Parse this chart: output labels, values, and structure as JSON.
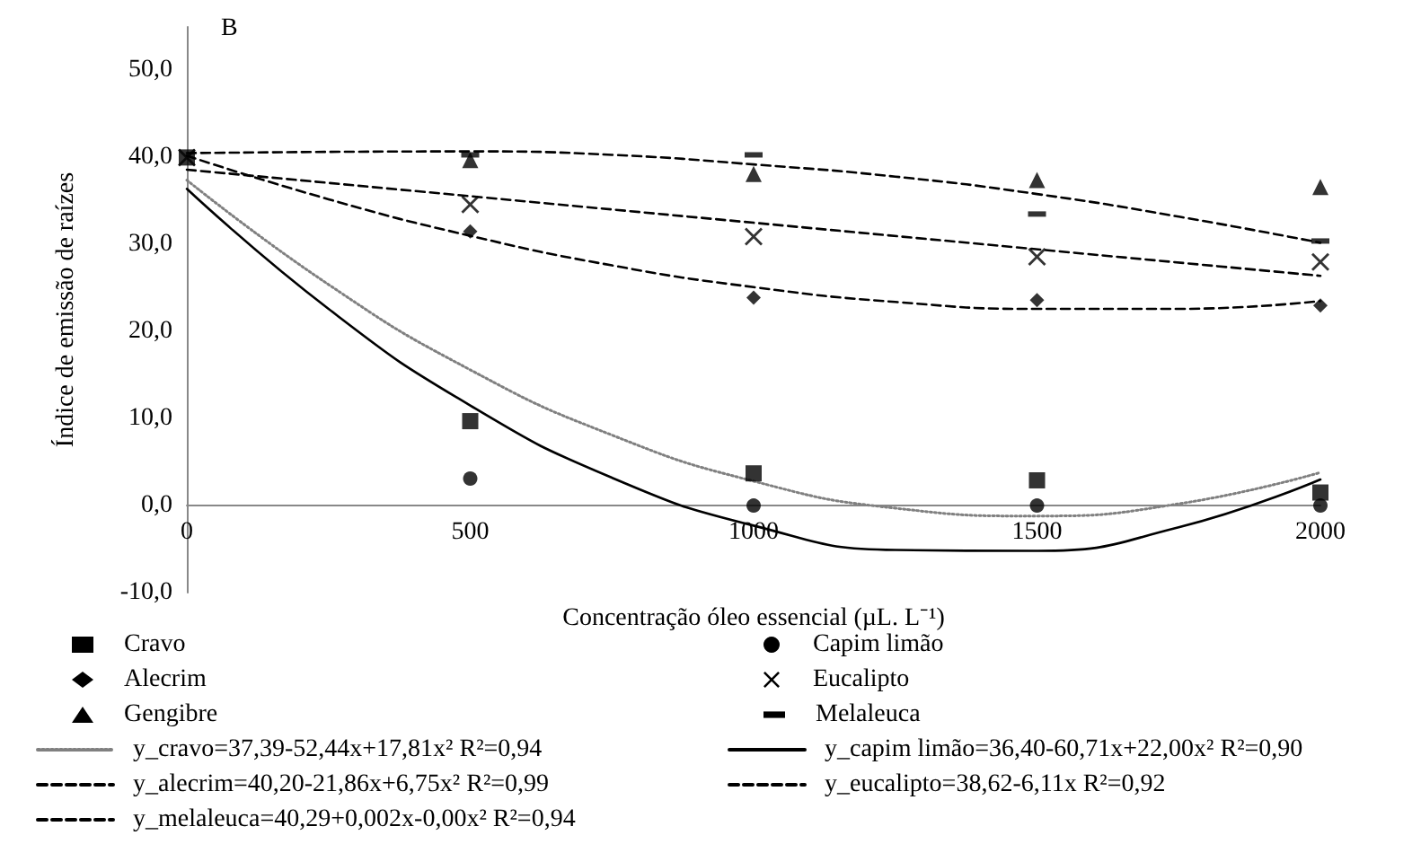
{
  "chart_data": {
    "type": "scatter",
    "title": "B",
    "xlabel": "Concentração óleo essencial (µL. L⁻¹)",
    "ylabel": "Índice de emissão de raízes",
    "x": [
      0,
      500,
      1000,
      1500,
      2000
    ],
    "xlim": [
      0,
      2000
    ],
    "xticks": [
      0,
      500,
      1000,
      1500,
      2000
    ],
    "ylim": [
      -10,
      55
    ],
    "yticks": [
      {
        "value": -10,
        "label": "-10,0"
      },
      {
        "value": 0,
        "label": "0,0"
      },
      {
        "value": 10,
        "label": "10,0"
      },
      {
        "value": 20,
        "label": "20,0"
      },
      {
        "value": 30,
        "label": "30,0"
      },
      {
        "value": 40,
        "label": "40,0"
      },
      {
        "value": 50,
        "label": "50,0"
      }
    ],
    "grid": false,
    "legend": "bottom",
    "series": [
      {
        "name": "Cravo",
        "marker": "square",
        "color": "#000000",
        "values": [
          40,
          9.7,
          3.7,
          2.9,
          1.5
        ]
      },
      {
        "name": "Capim limão",
        "marker": "circle",
        "color": "#000000",
        "values": [
          null,
          3.1,
          0,
          0,
          0
        ]
      },
      {
        "name": "Alecrim",
        "marker": "diamond",
        "color": "#000000",
        "values": [
          null,
          31.5,
          23.9,
          23.6,
          23.0
        ]
      },
      {
        "name": "Eucalipto",
        "marker": "cross",
        "color": "#000000",
        "values": [
          40,
          34.6,
          30.9,
          28.6,
          28.0
        ]
      },
      {
        "name": "Gengibre",
        "marker": "triangle",
        "color": "#000000",
        "values": [
          null,
          39.7,
          38.1,
          37.4,
          36.6
        ]
      },
      {
        "name": "Melaleuca",
        "color": "#000000",
        "values": [
          null,
          40.3,
          40.3,
          33.5,
          30.4
        ]
      },
      {
        "name": "y_cravo=37,39-52,44x+17,81x² R²=0,94",
        "type": "line",
        "marker": "none",
        "line_style": "dotted",
        "color": "#808080",
        "x": [
          0,
          250,
          500,
          750,
          1000,
          1250,
          1500,
          1750,
          2000
        ],
        "values": [
          37.4,
          25.4,
          15.6,
          8.1,
          2.8,
          -0.3,
          -1.2,
          0.2,
          3.8
        ]
      },
      {
        "name": "y_capim limão=36,40-60,71x+22,00x² R²=0,90",
        "type": "line",
        "marker": "none",
        "line_style": "solid",
        "color": "#000000",
        "x": [
          0,
          250,
          500,
          750,
          1000,
          1250,
          1500,
          1750,
          2000
        ],
        "values": [
          36.4,
          22.6,
          11.5,
          3.2,
          -2.3,
          -5.1,
          -5.2,
          -2.5,
          3.0
        ]
      },
      {
        "name": "y_alecrim=40,20-21,86x+6,75x² R²=0,99",
        "type": "line",
        "marker": "none",
        "line_style": "dashed",
        "color": "#000000",
        "x": [
          0,
          250,
          500,
          750,
          1000,
          1250,
          1500,
          1750,
          2000
        ],
        "values": [
          40.2,
          35.2,
          31.0,
          27.6,
          25.1,
          23.4,
          22.6,
          22.6,
          23.5
        ]
      },
      {
        "name": "y_eucalipto=38,62-6,11x R²=0,92",
        "type": "line",
        "marker": "none",
        "line_style": "dashed",
        "color": "#000000",
        "x": [
          0,
          1000,
          2000
        ],
        "values": [
          38.6,
          32.5,
          26.4
        ]
      },
      {
        "name": "y_melaleuca=40,29+0,002x-0,00x² R²=0,94",
        "type": "line",
        "marker": "none",
        "line_style": "dashed",
        "color": "#000000",
        "x": [
          0,
          500,
          750,
          1000,
          1250,
          1500,
          1750,
          2000
        ],
        "values": [
          40.5,
          40.7,
          40.3,
          39.2,
          37.8,
          35.8,
          33.2,
          30.2
        ]
      }
    ]
  }
}
